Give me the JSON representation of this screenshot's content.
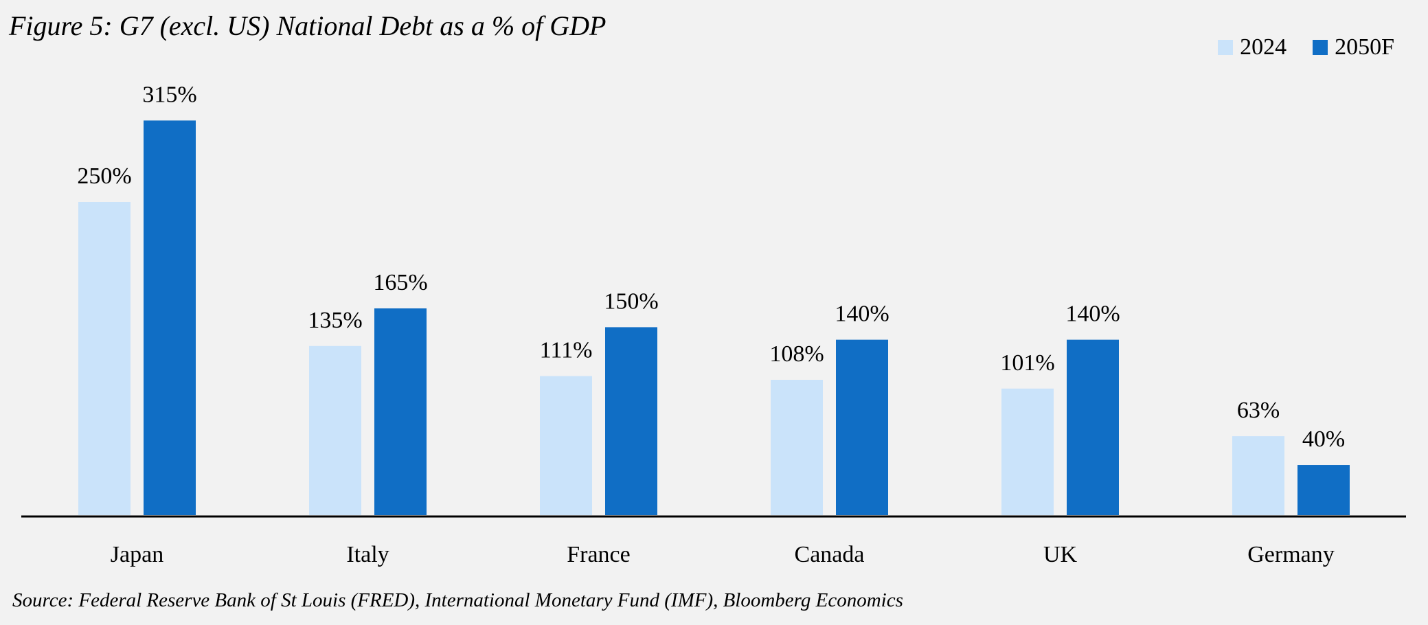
{
  "chart_data": {
    "type": "bar",
    "title": "Figure 5: G7 (excl. US) National Debt as a % of GDP",
    "xlabel": "",
    "ylabel": "",
    "ylim": [
      0,
      330
    ],
    "grid": false,
    "legend_position": "top-right",
    "categories": [
      "Japan",
      "Italy",
      "France",
      "Canada",
      "UK",
      "Germany"
    ],
    "series": [
      {
        "name": "2024",
        "color": "#CAE3FA",
        "values": [
          250,
          135,
          111,
          108,
          101,
          63
        ],
        "labels": [
          "250%",
          "135%",
          "111%",
          "108%",
          "101%",
          "63%"
        ]
      },
      {
        "name": "2050F",
        "color": "#106EC5",
        "values": [
          315,
          165,
          150,
          140,
          140,
          40
        ],
        "labels": [
          "315%",
          "165%",
          "150%",
          "140%",
          "140%",
          "40%"
        ]
      }
    ],
    "source": "Source: Federal Reserve Bank of St Louis (FRED), International Monetary Fund (IMF), Bloomberg Economics"
  }
}
